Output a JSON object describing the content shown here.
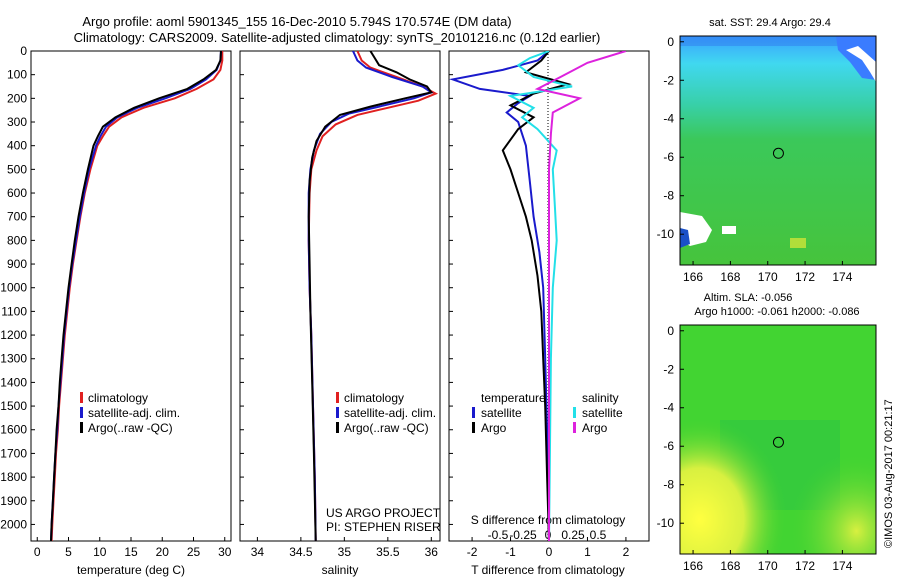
{
  "header": {
    "line1": "Argo profile: aoml 5901345_155 16-Dec-2010 5.794S 170.574E (DM data)",
    "line2": "Climatology: CARS2009. Satellite-adjusted climatology: synTS_20101216.nc (0.12d earlier)"
  },
  "colors": {
    "climatology": "#e02020",
    "satellite": "#1a1acc",
    "argo": "#000000",
    "sal_sat": "#22e0e8",
    "sal_argo": "#dd22dd"
  },
  "depth_axis": {
    "ticks": [
      0,
      100,
      200,
      300,
      400,
      500,
      600,
      700,
      800,
      900,
      1000,
      1100,
      1200,
      1300,
      1400,
      1500,
      1600,
      1700,
      1800,
      1900,
      2000
    ],
    "max": 2070
  },
  "chart_data": [
    {
      "type": "line",
      "id": "temperature",
      "xlabel": "temperature (deg C)",
      "xlim": [
        -1,
        31
      ],
      "xticks": [
        0,
        5,
        10,
        15,
        20,
        25,
        30
      ],
      "ylim": [
        0,
        2070
      ],
      "legend": [
        "climatology",
        "satellite-adj. clim.",
        "Argo(..raw -QC)"
      ],
      "series": [
        {
          "name": "climatology",
          "color": "#e02020",
          "points": [
            [
              29.6,
              0
            ],
            [
              29.6,
              40
            ],
            [
              29.3,
              80
            ],
            [
              28.2,
              120
            ],
            [
              25.5,
              160
            ],
            [
              22,
              200
            ],
            [
              17,
              240
            ],
            [
              13.5,
              280
            ],
            [
              11.5,
              320
            ],
            [
              10.5,
              360
            ],
            [
              9.6,
              400
            ],
            [
              8.5,
              500
            ],
            [
              7.6,
              600
            ],
            [
              6.9,
              700
            ],
            [
              6.3,
              800
            ],
            [
              5.7,
              900
            ],
            [
              5.2,
              1000
            ],
            [
              4.8,
              1100
            ],
            [
              4.4,
              1200
            ],
            [
              4.1,
              1300
            ],
            [
              3.8,
              1400
            ],
            [
              3.5,
              1500
            ],
            [
              3.3,
              1600
            ],
            [
              3.0,
              1700
            ],
            [
              2.8,
              1800
            ],
            [
              2.6,
              1900
            ],
            [
              2.4,
              2000
            ],
            [
              2.3,
              2070
            ]
          ]
        },
        {
          "name": "satellite-adj. clim.",
          "color": "#1a1acc",
          "points": [
            [
              29.4,
              0
            ],
            [
              29.3,
              40
            ],
            [
              28.7,
              80
            ],
            [
              27.0,
              120
            ],
            [
              24.5,
              160
            ],
            [
              20.5,
              200
            ],
            [
              16,
              240
            ],
            [
              12.8,
              280
            ],
            [
              11,
              320
            ],
            [
              10.1,
              360
            ],
            [
              9.4,
              400
            ],
            [
              8.3,
              500
            ],
            [
              7.5,
              600
            ],
            [
              6.8,
              700
            ],
            [
              6.2,
              800
            ],
            [
              5.6,
              900
            ],
            [
              5.1,
              1000
            ],
            [
              4.7,
              1100
            ],
            [
              4.3,
              1200
            ],
            [
              4.0,
              1300
            ],
            [
              3.7,
              1400
            ],
            [
              3.4,
              1500
            ],
            [
              3.2,
              1600
            ],
            [
              2.9,
              1700
            ],
            [
              2.7,
              1800
            ],
            [
              2.5,
              1900
            ],
            [
              2.3,
              2000
            ],
            [
              2.2,
              2070
            ]
          ]
        },
        {
          "name": "Argo(..raw -QC)",
          "color": "#000000",
          "points": [
            [
              29.4,
              0
            ],
            [
              29.3,
              40
            ],
            [
              28.6,
              80
            ],
            [
              26.6,
              120
            ],
            [
              24,
              160
            ],
            [
              19.5,
              200
            ],
            [
              15.5,
              240
            ],
            [
              12.5,
              280
            ],
            [
              10.5,
              320
            ],
            [
              9.7,
              360
            ],
            [
              9.0,
              400
            ],
            [
              8.1,
              500
            ],
            [
              7.3,
              600
            ],
            [
              6.6,
              700
            ],
            [
              6.0,
              800
            ],
            [
              5.5,
              900
            ],
            [
              5.0,
              1000
            ],
            [
              4.6,
              1100
            ],
            [
              4.2,
              1200
            ],
            [
              3.9,
              1300
            ],
            [
              3.6,
              1400
            ],
            [
              3.4,
              1500
            ],
            [
              3.1,
              1600
            ],
            [
              2.9,
              1700
            ],
            [
              2.7,
              1800
            ],
            [
              2.5,
              1900
            ],
            [
              2.3,
              2000
            ],
            [
              2.2,
              2070
            ]
          ]
        }
      ]
    },
    {
      "type": "line",
      "id": "salinity",
      "xlabel": "salinity",
      "xlim": [
        33.8,
        36.1
      ],
      "xticks": [
        34,
        34.5,
        35,
        35.5,
        36
      ],
      "ylim": [
        0,
        2070
      ],
      "legend": [
        "climatology",
        "satellite-adj. clim.",
        "Argo(..raw -QC)"
      ],
      "credit": [
        "US ARGO PROJECT",
        "PI: STEPHEN RISER"
      ],
      "series": [
        {
          "name": "climatology",
          "color": "#e02020",
          "points": [
            [
              35.15,
              0
            ],
            [
              35.2,
              40
            ],
            [
              35.3,
              70
            ],
            [
              35.6,
              110
            ],
            [
              35.9,
              150
            ],
            [
              36.05,
              180
            ],
            [
              35.85,
              210
            ],
            [
              35.5,
              240
            ],
            [
              35.15,
              270
            ],
            [
              34.9,
              310
            ],
            [
              34.75,
              360
            ],
            [
              34.68,
              420
            ],
            [
              34.62,
              500
            ],
            [
              34.6,
              600
            ],
            [
              34.59,
              800
            ],
            [
              34.6,
              1000
            ],
            [
              34.62,
              1200
            ],
            [
              34.64,
              1500
            ],
            [
              34.66,
              1800
            ],
            [
              34.67,
              2070
            ]
          ]
        },
        {
          "name": "satellite-adj. clim.",
          "color": "#1a1acc",
          "points": [
            [
              35.1,
              0
            ],
            [
              35.15,
              40
            ],
            [
              35.25,
              70
            ],
            [
              35.55,
              110
            ],
            [
              35.9,
              150
            ],
            [
              36.0,
              175
            ],
            [
              35.8,
              200
            ],
            [
              35.4,
              235
            ],
            [
              35.05,
              265
            ],
            [
              34.85,
              300
            ],
            [
              34.72,
              350
            ],
            [
              34.65,
              420
            ],
            [
              34.61,
              500
            ],
            [
              34.59,
              600
            ],
            [
              34.59,
              800
            ],
            [
              34.6,
              1000
            ],
            [
              34.62,
              1200
            ],
            [
              34.64,
              1500
            ],
            [
              34.66,
              1800
            ],
            [
              34.67,
              2070
            ]
          ]
        },
        {
          "name": "Argo(..raw -QC)",
          "color": "#000000",
          "points": [
            [
              35.3,
              0
            ],
            [
              35.35,
              30
            ],
            [
              35.4,
              60
            ],
            [
              35.6,
              90
            ],
            [
              35.75,
              120
            ],
            [
              35.95,
              150
            ],
            [
              36.0,
              175
            ],
            [
              35.7,
              200
            ],
            [
              35.3,
              235
            ],
            [
              34.95,
              270
            ],
            [
              34.78,
              320
            ],
            [
              34.68,
              380
            ],
            [
              34.63,
              450
            ],
            [
              34.6,
              550
            ],
            [
              34.59,
              700
            ],
            [
              34.6,
              900
            ],
            [
              34.61,
              1100
            ],
            [
              34.63,
              1400
            ],
            [
              34.65,
              1700
            ],
            [
              34.67,
              2070
            ]
          ]
        }
      ]
    },
    {
      "type": "line",
      "id": "differences",
      "xlabel": "T difference from climatology",
      "xlabel_top": "S difference from climatology",
      "xlim": [
        -2.6,
        2.6
      ],
      "xticks": [
        -2,
        -1,
        0,
        1,
        2
      ],
      "xticks_top": [
        -0.5,
        -0.25,
        0,
        0.25,
        0.5
      ],
      "ylim": [
        0,
        2070
      ],
      "legend": {
        "temperature": [
          "satellite",
          "Argo"
        ],
        "salinity": [
          "satellite",
          "Argo"
        ],
        "heads": [
          "temperature",
          "salinity"
        ]
      },
      "series": [
        {
          "name": "T satellite",
          "color": "#1a1acc",
          "points": [
            [
              0,
              0
            ],
            [
              -0.3,
              40
            ],
            [
              -1.2,
              80
            ],
            [
              -2.5,
              120
            ],
            [
              -1.8,
              160
            ],
            [
              -0.5,
              190
            ],
            [
              -0.8,
              220
            ],
            [
              -1.1,
              260
            ],
            [
              -0.8,
              300
            ],
            [
              -0.6,
              400
            ],
            [
              -0.5,
              550
            ],
            [
              -0.4,
              700
            ],
            [
              -0.25,
              850
            ],
            [
              -0.15,
              1000
            ],
            [
              -0.1,
              1300
            ],
            [
              -0.05,
              1600
            ],
            [
              0,
              2070
            ]
          ]
        },
        {
          "name": "T Argo",
          "color": "#000000",
          "points": [
            [
              0,
              0
            ],
            [
              -0.2,
              40
            ],
            [
              -0.6,
              90
            ],
            [
              0.5,
              140
            ],
            [
              -0.4,
              180
            ],
            [
              -1.0,
              230
            ],
            [
              -0.4,
              280
            ],
            [
              -0.8,
              330
            ],
            [
              -1.2,
              420
            ],
            [
              -1.0,
              500
            ],
            [
              -0.8,
              600
            ],
            [
              -0.6,
              700
            ],
            [
              -0.45,
              800
            ],
            [
              -0.3,
              950
            ],
            [
              -0.2,
              1100
            ],
            [
              -0.15,
              1300
            ],
            [
              -0.1,
              1500
            ],
            [
              -0.05,
              1800
            ],
            [
              0,
              2070
            ]
          ]
        },
        {
          "name": "S satellite",
          "color": "#22e0e8",
          "points": [
            [
              0,
              0
            ],
            [
              -0.5,
              30
            ],
            [
              -0.8,
              60
            ],
            [
              -0.4,
              110
            ],
            [
              0.6,
              150
            ],
            [
              -1.0,
              190
            ],
            [
              -0.4,
              240
            ],
            [
              -0.7,
              280
            ],
            [
              -0.3,
              330
            ],
            [
              0.2,
              420
            ],
            [
              0.1,
              500
            ],
            [
              0.15,
              650
            ],
            [
              0.2,
              800
            ],
            [
              0.1,
              1000
            ],
            [
              0.05,
              1300
            ],
            [
              0,
              2070
            ]
          ]
        },
        {
          "name": "S Argo",
          "color": "#dd22dd",
          "points": [
            [
              2.0,
              0
            ],
            [
              1.0,
              50
            ],
            [
              0.3,
              110
            ],
            [
              -0.3,
              160
            ],
            [
              0.8,
              200
            ],
            [
              0.1,
              260
            ],
            [
              0.05,
              350
            ],
            [
              0.0,
              500
            ],
            [
              0,
              2070
            ]
          ]
        }
      ]
    },
    {
      "type": "heatmap",
      "id": "sst-map",
      "title": "sat. SST: 29.4  Argo: 29.4",
      "xlim": [
        165.3,
        175.8
      ],
      "ylim": [
        -11.6,
        0.3
      ],
      "xticks": [
        166,
        168,
        170,
        172,
        174
      ],
      "yticks": [
        0,
        -2,
        -4,
        -6,
        -8,
        -10
      ],
      "marker": [
        170.574,
        -5.794
      ]
    },
    {
      "type": "heatmap",
      "id": "sla-map",
      "title": "Altim. SLA: -0.056",
      "subtitle": "Argo h1000: -0.061 h2000: -0.086",
      "xlim": [
        165.3,
        175.8
      ],
      "ylim": [
        -11.6,
        0.3
      ],
      "xticks": [
        166,
        168,
        170,
        172,
        174
      ],
      "yticks": [
        0,
        -2,
        -4,
        -6,
        -8,
        -10
      ],
      "marker": [
        170.574,
        -5.794
      ]
    }
  ],
  "footer_stamp": "©IMOS 03-Aug-2017 00:21:17"
}
